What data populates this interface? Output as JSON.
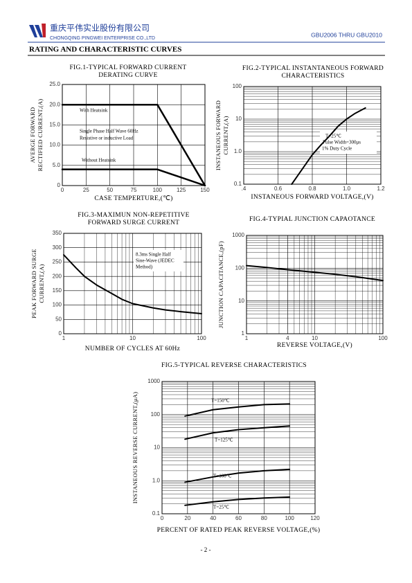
{
  "header": {
    "company_cn": "重庆平伟实业股份有限公司",
    "company_en": "CHONGQING PINGWEI ENTERPRISE CO.,LTD",
    "part_range": "GBU2006 THRU GBU2010",
    "section_title": "RATING AND CHARACTERISTIC CURVES"
  },
  "footer": {
    "page": "- 2 -"
  },
  "chart_data": [
    {
      "type": "line",
      "title": [
        "FIG.1-TYPICAL FORWARD CURRENT",
        "DERATING CURVE"
      ],
      "x_label": [
        "CASE TEMPERTURE,(℃)"
      ],
      "y_label": [
        "AVERGE FORWARD",
        "RECTIFIED CURRENT,(A)"
      ],
      "xlim": [
        0,
        150
      ],
      "xticks": [
        0,
        25,
        50,
        75,
        100,
        125,
        150
      ],
      "ylim": [
        0,
        25
      ],
      "yticks": [
        0,
        {
          "value": 5,
          "label": "5.0"
        },
        {
          "value": 10,
          "label": "10.0"
        },
        {
          "value": 15,
          "label": "15.0"
        },
        {
          "value": 20,
          "label": "20.0"
        },
        {
          "value": 25,
          "label": "25.0"
        }
      ],
      "grid": true,
      "line_width": 2.5,
      "series": [
        {
          "name": "With Heatsink",
          "color": "#000000",
          "x": [
            0,
            100,
            150
          ],
          "values": [
            20,
            20,
            0
          ]
        },
        {
          "name": "Without Heatsink",
          "color": "#000000",
          "x": [
            0,
            100,
            150
          ],
          "values": [
            4,
            4,
            0
          ]
        }
      ],
      "annotations": [
        "Single Phase Half Wave 60Hz",
        "Resistive or inductive Load"
      ]
    },
    {
      "type": "line",
      "title": [
        "FIG.2-TYPICAL INSTANTANEOUS FORWARD",
        "CHARACTERISTICS"
      ],
      "x_label": [
        "INSTANEOUS FORWARD VOLTAGE,(V)"
      ],
      "y_label": [
        "INSTANEOUS FORWARD",
        "CURRENT,(A)"
      ],
      "xlim": [
        0.4,
        1.2
      ],
      "xticks": [
        {
          "value": 0.4,
          "label": ".4"
        },
        0.6,
        0.8,
        {
          "value": 1,
          "label": "1.0"
        },
        1.2
      ],
      "ylim": [
        0.1,
        100
      ],
      "yticks": [
        0.1,
        {
          "value": 1,
          "label": "1.0"
        },
        10,
        100
      ],
      "ylog": true,
      "grid": true,
      "line_width": 2,
      "series": [
        {
          "color": "#000000",
          "x": [
            0.68,
            0.72,
            0.76,
            0.8,
            0.85,
            0.9,
            0.95,
            1.0,
            1.05,
            1.11
          ],
          "values": [
            0.1,
            0.2,
            0.4,
            0.8,
            1.6,
            3,
            6,
            10,
            15,
            22
          ]
        }
      ],
      "annotations": [
        "T=25℃",
        "Pulse Width=300μs",
        "1% Duty Cycle"
      ]
    },
    {
      "type": "line",
      "title": [
        "FIG.3-MAXIMUN NON-REPETITIVE",
        "FORWARD SURGE CURRENT"
      ],
      "x_label": [
        "NUMBER OF CYCLES AT 60Hz"
      ],
      "y_label": [
        "PEAK FORWARD SURGE",
        "CURRENT,(A)"
      ],
      "xlim": [
        1,
        100
      ],
      "xticks": [
        1,
        10,
        100
      ],
      "xlog": true,
      "ylim": [
        0,
        350
      ],
      "yticks": [
        0,
        50,
        100,
        150,
        200,
        250,
        300,
        350
      ],
      "grid": true,
      "line_width": 2,
      "series": [
        {
          "color": "#000000",
          "x": [
            1,
            1.5,
            2,
            3,
            5,
            7,
            10,
            20,
            30,
            50,
            100
          ],
          "values": [
            275,
            230,
            200,
            170,
            140,
            120,
            105,
            90,
            83,
            77,
            70
          ]
        }
      ],
      "annotations": [
        "8.3ms Single Half",
        "Sine-Wave (JEDEC",
        "Method)"
      ]
    },
    {
      "type": "line",
      "title": [
        "FIG.4-TYPIAL JUNCTION CAPAOTANCE"
      ],
      "x_label": [
        "REVERSE VOLTAGE,(V)"
      ],
      "y_label": [
        "JUNCTION CAPACITANCE,(pF)"
      ],
      "xlim": [
        1,
        100
      ],
      "xticks": [
        1,
        4,
        10,
        100
      ],
      "xlog": true,
      "ylim": [
        1,
        1000
      ],
      "yticks": [
        1,
        10,
        100,
        1000
      ],
      "ylog": true,
      "grid": true,
      "line_width": 2,
      "series": [
        {
          "color": "#000000",
          "x": [
            1,
            2,
            4,
            10,
            20,
            40,
            100
          ],
          "values": [
            120,
            105,
            90,
            75,
            65,
            55,
            42
          ]
        }
      ]
    },
    {
      "type": "line",
      "title": [
        "FIG.5-TYPICAL REVERSE CHARACTERISTICS"
      ],
      "x_label": [
        "PERCENT OF RATED PEAK REVERSE VOLTAGE,(%)"
      ],
      "y_label": [
        "INSTANEOUS REVERSE CURRENT,(μA)"
      ],
      "xlim": [
        0,
        120
      ],
      "xticks": [
        0,
        20,
        40,
        60,
        80,
        100,
        120
      ],
      "ylim": [
        0.1,
        1000
      ],
      "yticks": [
        0.1,
        {
          "value": 1,
          "label": "1.0"
        },
        10,
        100,
        1000
      ],
      "ylog": true,
      "grid": true,
      "line_width": 2,
      "series": [
        {
          "name": "T=150℃",
          "color": "#000000",
          "x": [
            18,
            40,
            60,
            80,
            100
          ],
          "values": [
            90,
            140,
            170,
            200,
            210
          ]
        },
        {
          "name": "T=125℃",
          "color": "#000000",
          "x": [
            18,
            40,
            60,
            80,
            100
          ],
          "values": [
            18,
            28,
            35,
            40,
            45
          ]
        },
        {
          "name": "T=100℃",
          "color": "#000000",
          "x": [
            18,
            40,
            60,
            80,
            100
          ],
          "values": [
            0.9,
            1.3,
            1.7,
            2.0,
            2.2
          ]
        },
        {
          "name": "T=25℃",
          "color": "#000000",
          "x": [
            18,
            40,
            60,
            80,
            100
          ],
          "values": [
            0.18,
            0.23,
            0.27,
            0.3,
            0.32
          ]
        }
      ]
    }
  ]
}
